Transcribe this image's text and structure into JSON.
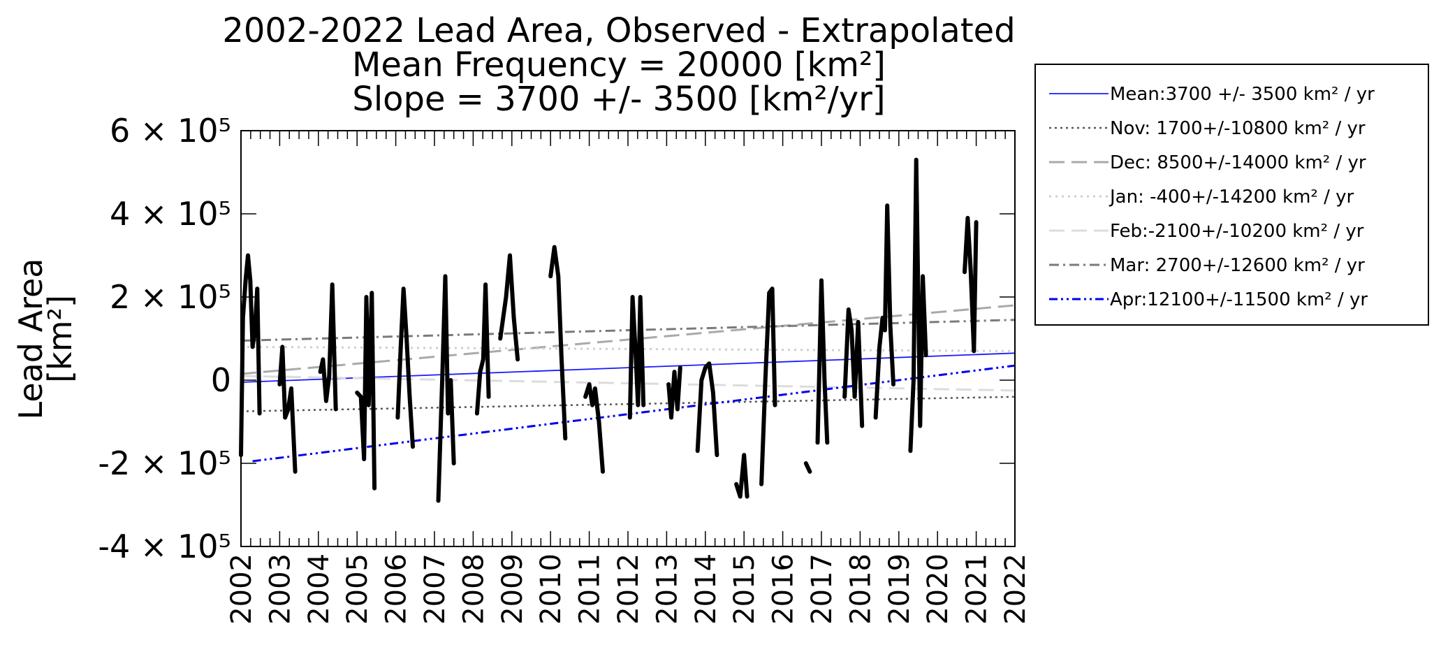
{
  "chart_data": {
    "type": "line",
    "title_lines": [
      "2002-2022 Lead Area, Observed - Extrapolated",
      "Mean Frequency =    20000 [km²]",
      "Slope = 3700 +/- 3500 [km²/yr]"
    ],
    "ylabel_lines": [
      "Lead Area",
      "[km²]"
    ],
    "xlim": [
      2002,
      2022
    ],
    "ylim": [
      -400000,
      600000
    ],
    "x_ticks": [
      "2002",
      "2003",
      "2004",
      "2005",
      "2006",
      "2007",
      "2008",
      "2009",
      "2010",
      "2011",
      "2012",
      "2013",
      "2014",
      "2015",
      "2016",
      "2017",
      "2018",
      "2019",
      "2020",
      "2021",
      "2022"
    ],
    "y_ticks": [
      {
        "value": 600000,
        "label": "6 × 10⁵"
      },
      {
        "value": 400000,
        "label": "4 × 10⁵"
      },
      {
        "value": 200000,
        "label": "2 × 10⁵"
      },
      {
        "value": 0,
        "label": "0"
      },
      {
        "value": -200000,
        "label": "-2 × 10⁵"
      },
      {
        "value": -400000,
        "label": "-4 × 10⁵"
      }
    ],
    "observed_segments": [
      [
        [
          2002.0,
          -180000
        ],
        [
          2002.05,
          150000
        ],
        [
          2002.12,
          240000
        ],
        [
          2002.18,
          300000
        ],
        [
          2002.24,
          240000
        ],
        [
          2002.3,
          80000
        ],
        [
          2002.36,
          120000
        ],
        [
          2002.42,
          220000
        ],
        [
          2002.48,
          -80000
        ]
      ],
      [
        [
          2003.0,
          -10000
        ],
        [
          2003.07,
          80000
        ],
        [
          2003.14,
          -90000
        ],
        [
          2003.22,
          -70000
        ],
        [
          2003.3,
          -20000
        ],
        [
          2003.4,
          -220000
        ]
      ],
      [
        [
          2004.05,
          20000
        ],
        [
          2004.12,
          50000
        ],
        [
          2004.2,
          -50000
        ],
        [
          2004.28,
          10000
        ],
        [
          2004.36,
          230000
        ],
        [
          2004.45,
          -70000
        ]
      ],
      [
        [
          2005.0,
          -30000
        ],
        [
          2005.1,
          -40000
        ],
        [
          2005.18,
          -190000
        ],
        [
          2005.24,
          200000
        ],
        [
          2005.3,
          -60000
        ],
        [
          2005.38,
          210000
        ],
        [
          2005.45,
          -260000
        ]
      ],
      [
        [
          2006.05,
          -90000
        ],
        [
          2006.12,
          60000
        ],
        [
          2006.2,
          220000
        ],
        [
          2006.28,
          100000
        ],
        [
          2006.36,
          -40000
        ],
        [
          2006.44,
          -160000
        ]
      ],
      [
        [
          2007.1,
          -290000
        ],
        [
          2007.2,
          0
        ],
        [
          2007.28,
          250000
        ],
        [
          2007.35,
          -80000
        ],
        [
          2007.42,
          0
        ],
        [
          2007.5,
          -200000
        ]
      ],
      [
        [
          2008.1,
          -80000
        ],
        [
          2008.18,
          20000
        ],
        [
          2008.26,
          50000
        ],
        [
          2008.32,
          230000
        ],
        [
          2008.4,
          -40000
        ]
      ],
      [
        [
          2008.7,
          100000
        ],
        [
          2008.85,
          200000
        ],
        [
          2008.95,
          300000
        ],
        [
          2009.05,
          150000
        ],
        [
          2009.15,
          50000
        ]
      ],
      [
        [
          2010.0,
          250000
        ],
        [
          2010.1,
          320000
        ],
        [
          2010.2,
          250000
        ],
        [
          2010.28,
          60000
        ],
        [
          2010.38,
          -140000
        ]
      ],
      [
        [
          2010.9,
          -40000
        ],
        [
          2011.0,
          -10000
        ],
        [
          2011.08,
          -60000
        ],
        [
          2011.15,
          -20000
        ],
        [
          2011.25,
          -100000
        ],
        [
          2011.35,
          -220000
        ]
      ],
      [
        [
          2012.05,
          -90000
        ],
        [
          2012.12,
          200000
        ],
        [
          2012.2,
          60000
        ],
        [
          2012.26,
          -60000
        ],
        [
          2012.32,
          200000
        ],
        [
          2012.4,
          -60000
        ]
      ],
      [
        [
          2013.05,
          -10000
        ],
        [
          2013.12,
          -90000
        ],
        [
          2013.2,
          20000
        ],
        [
          2013.28,
          -70000
        ],
        [
          2013.35,
          30000
        ]
      ],
      [
        [
          2013.8,
          -170000
        ],
        [
          2013.9,
          0
        ],
        [
          2014.0,
          30000
        ],
        [
          2014.1,
          40000
        ],
        [
          2014.2,
          -30000
        ],
        [
          2014.3,
          -180000
        ]
      ],
      [
        [
          2014.8,
          -250000
        ],
        [
          2014.9,
          -280000
        ],
        [
          2015.0,
          -180000
        ],
        [
          2015.08,
          -280000
        ]
      ],
      [
        [
          2015.45,
          -250000
        ],
        [
          2015.55,
          0
        ],
        [
          2015.65,
          210000
        ],
        [
          2015.73,
          220000
        ],
        [
          2015.8,
          -60000
        ]
      ],
      [
        [
          2016.6,
          -200000
        ],
        [
          2016.7,
          -220000
        ]
      ],
      [
        [
          2016.9,
          -150000
        ],
        [
          2017.0,
          240000
        ],
        [
          2017.08,
          0
        ],
        [
          2017.15,
          -150000
        ]
      ],
      [
        [
          2017.6,
          -40000
        ],
        [
          2017.7,
          170000
        ],
        [
          2017.78,
          120000
        ],
        [
          2017.86,
          -40000
        ],
        [
          2017.95,
          140000
        ],
        [
          2018.05,
          -110000
        ]
      ],
      [
        [
          2018.4,
          -90000
        ],
        [
          2018.5,
          80000
        ],
        [
          2018.58,
          150000
        ],
        [
          2018.64,
          120000
        ],
        [
          2018.7,
          420000
        ],
        [
          2018.78,
          130000
        ],
        [
          2018.86,
          -10000
        ]
      ],
      [
        [
          2019.3,
          -170000
        ],
        [
          2019.38,
          0
        ],
        [
          2019.45,
          530000
        ],
        [
          2019.55,
          -110000
        ],
        [
          2019.62,
          250000
        ],
        [
          2019.7,
          60000
        ]
      ],
      [
        [
          2020.7,
          260000
        ],
        [
          2020.78,
          390000
        ],
        [
          2020.86,
          260000
        ],
        [
          2020.94,
          70000
        ],
        [
          2021.0,
          380000
        ]
      ]
    ],
    "legend": {
      "placement": "right-outside",
      "entries": [
        {
          "key": "mean",
          "label": "Mean:3700 +/- 3500 km² / yr"
        },
        {
          "key": "nov",
          "label": "Nov: 1700+/-10800 km² / yr"
        },
        {
          "key": "dec",
          "label": "Dec: 8500+/-14000 km² / yr"
        },
        {
          "key": "jan",
          "label": "Jan: -400+/-14200 km² / yr"
        },
        {
          "key": "feb",
          "label": "Feb:-2100+/-10200 km² / yr"
        },
        {
          "key": "mar",
          "label": "Mar: 2700+/-12600 km² / yr"
        },
        {
          "key": "apr",
          "label": "Apr:12100+/-11500 km² / yr"
        }
      ]
    },
    "trend_lines": [
      {
        "key": "mean",
        "x": [
          2002,
          2022
        ],
        "y": [
          -5000,
          65000
        ],
        "color": "#1a1aff",
        "dash": "",
        "width": 1.8
      },
      {
        "key": "nov",
        "x": [
          2002,
          2022
        ],
        "y": [
          -75000,
          -40000
        ],
        "color": "#555555",
        "dash": "3,5",
        "width": 2.5
      },
      {
        "key": "dec",
        "x": [
          2002,
          2022
        ],
        "y": [
          15000,
          180000
        ],
        "color": "#a9a9a9",
        "dash": "22,10",
        "width": 3
      },
      {
        "key": "jan",
        "x": [
          2002,
          2022
        ],
        "y": [
          80000,
          70000
        ],
        "color": "#cfcfcf",
        "dash": "3,6",
        "width": 3
      },
      {
        "key": "feb",
        "x": [
          2002,
          2022
        ],
        "y": [
          10000,
          -25000
        ],
        "color": "#dcdcdc",
        "dash": "22,10",
        "width": 3
      },
      {
        "key": "mar",
        "x": [
          2002,
          2022
        ],
        "y": [
          95000,
          145000
        ],
        "color": "#7a7a7a",
        "dash": "14,6,3,6",
        "width": 3
      },
      {
        "key": "apr",
        "x": [
          2002.3,
          2022
        ],
        "y": [
          -195000,
          35000
        ],
        "color": "#0000ee",
        "dash": "12,5,3,5,3,5",
        "width": 3
      }
    ]
  }
}
